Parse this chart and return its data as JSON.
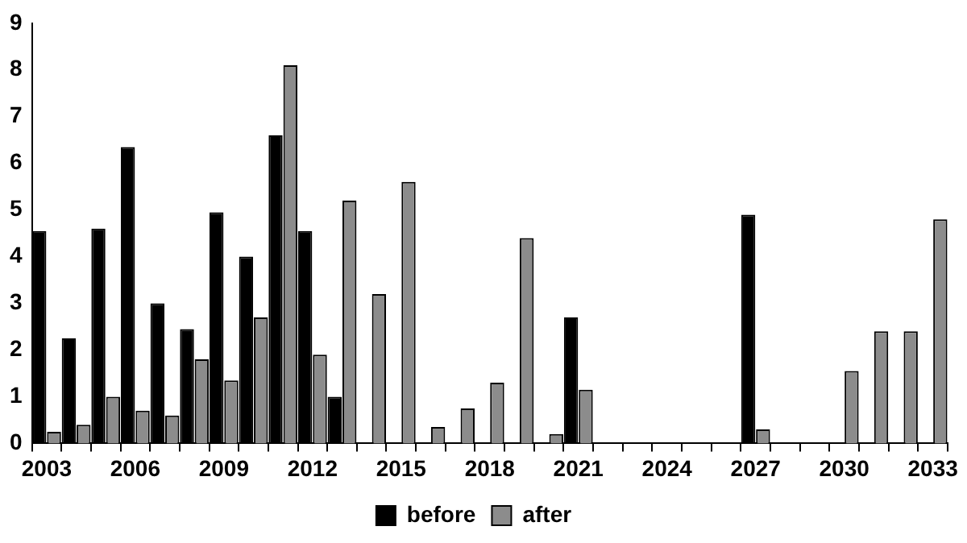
{
  "chart_data": {
    "type": "bar",
    "categories": [
      "2003",
      null,
      null,
      "2006",
      null,
      null,
      "2009",
      null,
      null,
      "2012",
      null,
      null,
      "2015",
      null,
      null,
      "2018",
      null,
      null,
      "2021",
      null,
      null,
      "2024",
      null,
      null,
      "2027",
      null,
      null,
      "2030",
      null,
      null,
      "2033"
    ],
    "series": [
      {
        "name": "before",
        "color": "#000000",
        "values": [
          4.55,
          2.25,
          4.6,
          6.35,
          3.0,
          2.45,
          4.95,
          4.0,
          6.6,
          4.55,
          1.0,
          null,
          null,
          null,
          null,
          null,
          null,
          null,
          2.7,
          null,
          null,
          null,
          null,
          null,
          4.9,
          null,
          null,
          null,
          null,
          null,
          null
        ]
      },
      {
        "name": "after",
        "color": "#8c8c8c",
        "values": [
          0.25,
          0.4,
          1.0,
          0.7,
          0.6,
          1.8,
          1.35,
          2.7,
          8.1,
          1.9,
          5.2,
          3.2,
          5.6,
          0.35,
          0.75,
          1.3,
          4.4,
          0.2,
          1.15,
          null,
          null,
          null,
          null,
          null,
          0.3,
          null,
          null,
          1.55,
          2.4,
          2.4,
          4.8
        ]
      }
    ],
    "ylim": [
      0,
      9
    ],
    "yticks": [
      0,
      1,
      2,
      3,
      4,
      5,
      6,
      7,
      8,
      9
    ],
    "grid": false,
    "legend": "bottom"
  }
}
